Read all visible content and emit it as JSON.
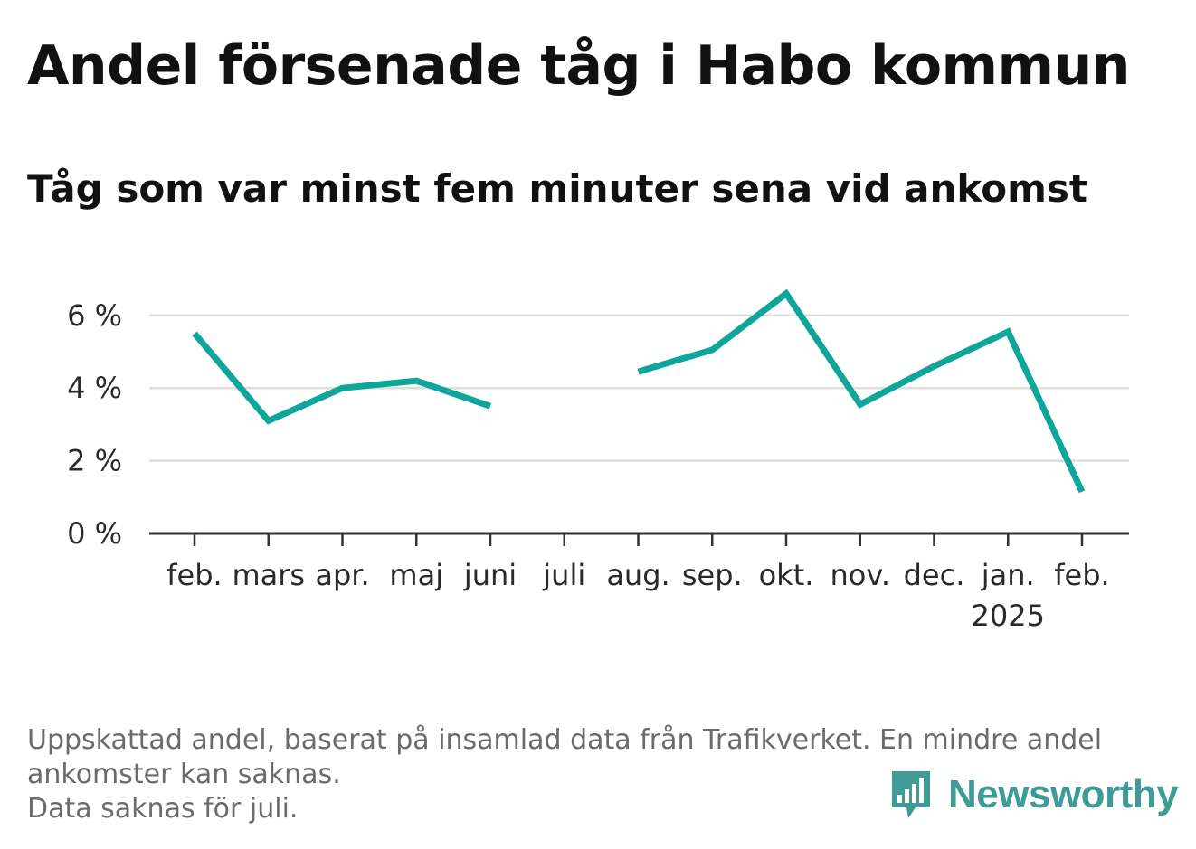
{
  "title": "Andel försenade tåg i Habo kommun",
  "subtitle": "Tåg som var minst fem minuter sena vid ankomst",
  "footnote": {
    "line1": "Uppskattad andel, baserat på insamlad data från Trafikverket. En mindre andel",
    "line2": "ankomster kan saknas.",
    "line3": "Data saknas för juli."
  },
  "logo": {
    "text": "Newsworthy",
    "icon": "newsworthy-bar-chart-icon"
  },
  "colors": {
    "line": "#0ea59a",
    "grid": "#dddddd",
    "axis": "#333333",
    "logo": "#3f9b96"
  },
  "chart_data": {
    "type": "line",
    "categories": [
      "feb.",
      "mars",
      "apr.",
      "maj",
      "juni",
      "juli",
      "aug.",
      "sep.",
      "okt.",
      "nov.",
      "dec.",
      "jan.",
      "feb."
    ],
    "year_label": {
      "category_index": 11,
      "text": "2025"
    },
    "series": [
      {
        "values": [
          5.5,
          3.1,
          4.0,
          4.2,
          3.5,
          null,
          4.45,
          5.05,
          6.6,
          3.55,
          4.6,
          5.55,
          1.15
        ]
      }
    ],
    "yticks": [
      0,
      2,
      4,
      6
    ],
    "ytick_labels": [
      "0 %",
      "2 %",
      "4 %",
      "6 %"
    ],
    "ylim": [
      0,
      7
    ],
    "grid": true,
    "legend": "none",
    "xlabel": "",
    "ylabel": ""
  }
}
